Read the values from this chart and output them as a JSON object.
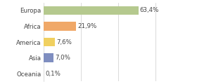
{
  "categories": [
    "Europa",
    "Africa",
    "America",
    "Asia",
    "Oceania"
  ],
  "values": [
    63.4,
    21.9,
    7.6,
    7.0,
    0.1
  ],
  "labels": [
    "63,4%",
    "21,9%",
    "7,6%",
    "7,0%",
    "0,1%"
  ],
  "bar_colors": [
    "#b5c98e",
    "#f0a868",
    "#f0d060",
    "#7f8ec0",
    "#f5a080"
  ],
  "background_color": "#ffffff",
  "xlim": [
    0,
    100
  ],
  "bar_height": 0.55,
  "label_fontsize": 6.2,
  "tick_fontsize": 6.2,
  "grid_lines": [
    25,
    50,
    75,
    100
  ]
}
